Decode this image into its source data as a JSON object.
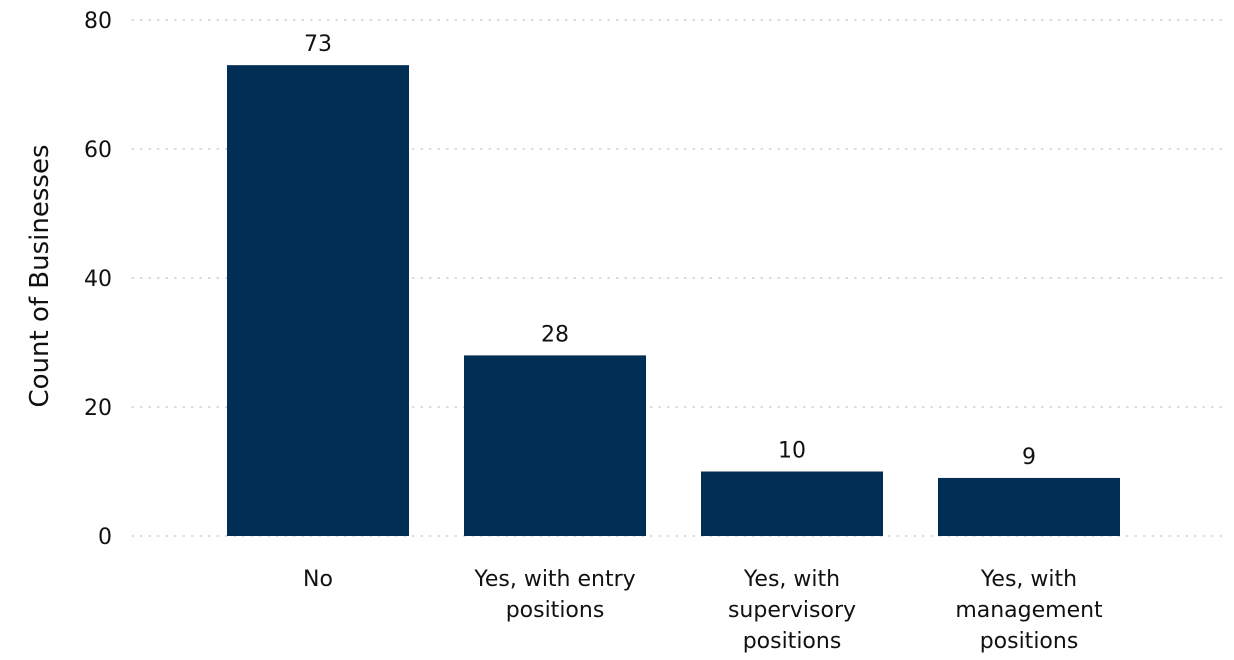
{
  "chart_data": {
    "type": "bar",
    "title": "",
    "xlabel": "",
    "ylabel": "Count of Businesses",
    "ylim": [
      0,
      80
    ],
    "yticks": [
      0,
      20,
      40,
      60,
      80
    ],
    "grid": true,
    "categories": [
      "No",
      "Yes, with entry positions",
      "Yes, with supervisory positions",
      "Yes, with management positions"
    ],
    "category_lines": [
      [
        "No"
      ],
      [
        "Yes, with entry",
        "positions"
      ],
      [
        "Yes, with",
        "supervisory",
        "positions"
      ],
      [
        "Yes, with",
        "management",
        "positions"
      ]
    ],
    "values": [
      73,
      28,
      10,
      9
    ],
    "data_labels": [
      "73",
      "28",
      "10",
      "9"
    ],
    "colors": {
      "bar": "#002e54",
      "grid": "#c8c8c8",
      "text": "#111111"
    }
  }
}
